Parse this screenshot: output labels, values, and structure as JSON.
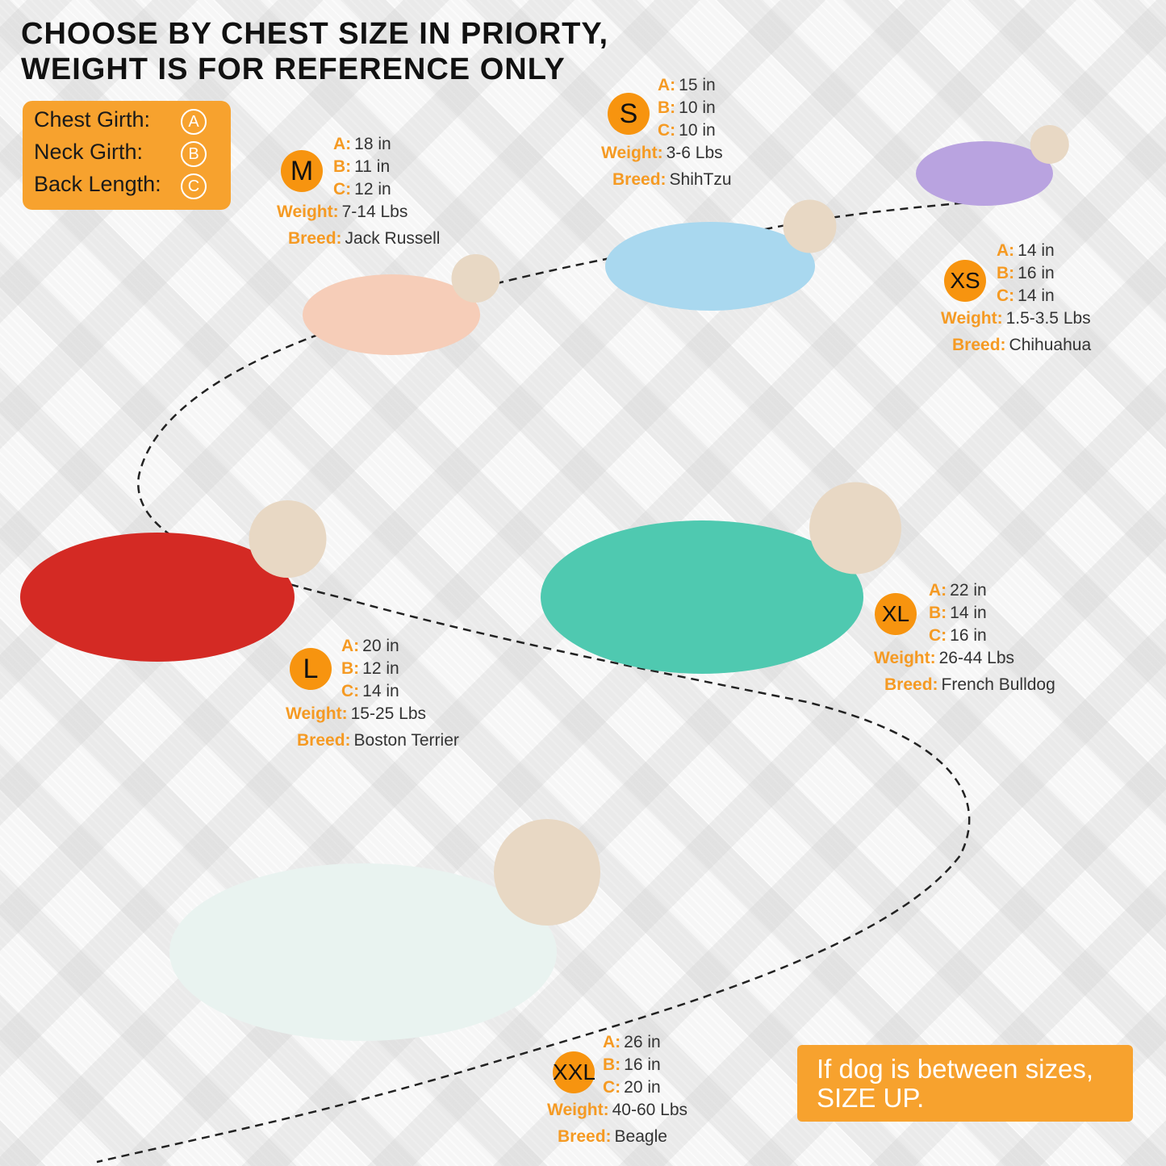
{
  "title": {
    "line1": "CHOOSE BY CHEST SIZE IN PRIORTY,",
    "line2": "WEIGHT IS FOR REFERENCE ONLY"
  },
  "legend": [
    {
      "label": "Chest Girth:",
      "symbol": "A"
    },
    {
      "label": "Neck Girth:",
      "symbol": "B"
    },
    {
      "label": "Back Length:",
      "symbol": "C"
    }
  ],
  "keys": {
    "a": "A:",
    "b": "B:",
    "c": "C:",
    "weight": "Weight:",
    "breed": "Breed:"
  },
  "sizes": [
    {
      "size": "S",
      "a": "15 in",
      "b": "10 in",
      "c": "10 in",
      "weight": "3-6 Lbs",
      "breed": "ShihTzu",
      "pajama_color": "#a9d8ef"
    },
    {
      "size": "M",
      "a": "18 in",
      "b": "11 in",
      "c": "12 in",
      "weight": "7-14 Lbs",
      "breed": "Jack Russell",
      "pajama_color": "#f6cdb8"
    },
    {
      "size": "XS",
      "a": "14 in",
      "b": "16 in",
      "c": "14 in",
      "weight": "1.5-3.5 Lbs",
      "breed": "Chihuahua",
      "pajama_color": "#b9a3e0"
    },
    {
      "size": "XL",
      "a": "22 in",
      "b": "14 in",
      "c": "16 in",
      "weight": "26-44 Lbs",
      "breed": "French Bulldog",
      "pajama_color": "#4fc9b0"
    },
    {
      "size": "L",
      "a": "20 in",
      "b": "12 in",
      "c": "14 in",
      "weight": "15-25 Lbs",
      "breed": "Boston Terrier",
      "pajama_color": "#d42a24"
    },
    {
      "size": "XXL",
      "a": "26 in",
      "b": "16 in",
      "c": "20 in",
      "weight": "40-60 Lbs",
      "breed": "Beagle",
      "pajama_color": "#e9f3f0"
    }
  ],
  "note": {
    "line1": "If dog is between sizes,",
    "line2": "SIZE UP."
  },
  "colors": {
    "accent": "#f7940f",
    "label": "#f59a23"
  }
}
